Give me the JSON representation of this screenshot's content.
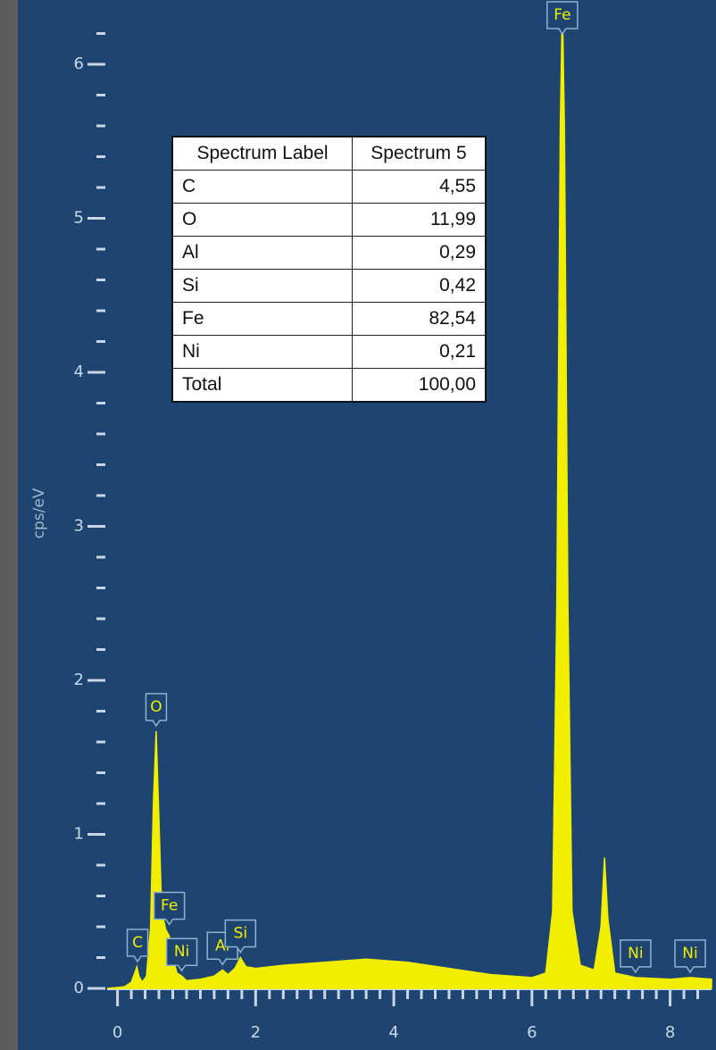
{
  "chart_data": {
    "type": "area",
    "y_label": "cps/eV",
    "color": "#f2ee00",
    "x": [
      -0.15,
      0.1,
      0.2,
      0.25,
      0.28,
      0.31,
      0.36,
      0.42,
      0.48,
      0.52,
      0.56,
      0.6,
      0.64,
      0.7,
      0.75,
      0.8,
      0.86,
      0.93,
      1.0,
      1.2,
      1.4,
      1.52,
      1.6,
      1.7,
      1.78,
      1.86,
      2.0,
      2.4,
      3.0,
      3.6,
      4.2,
      4.8,
      5.4,
      6.0,
      6.2,
      6.3,
      6.36,
      6.41,
      6.44,
      6.47,
      6.52,
      6.58,
      6.7,
      6.9,
      7.0,
      7.05,
      7.1,
      7.2,
      7.5,
      8.0,
      8.29,
      8.6
    ],
    "values": [
      0,
      0.01,
      0.04,
      0.1,
      0.14,
      0.08,
      0.04,
      0.08,
      0.4,
      1.2,
      1.67,
      1.1,
      0.5,
      0.38,
      0.34,
      0.2,
      0.1,
      0.08,
      0.05,
      0.06,
      0.08,
      0.12,
      0.09,
      0.13,
      0.2,
      0.14,
      0.13,
      0.15,
      0.17,
      0.19,
      0.17,
      0.13,
      0.09,
      0.07,
      0.1,
      0.5,
      2.5,
      5.6,
      6.4,
      5.6,
      2.5,
      0.5,
      0.15,
      0.12,
      0.4,
      0.85,
      0.45,
      0.1,
      0.07,
      0.06,
      0.07,
      0.06
    ],
    "xlim": [
      -0.15,
      8.6
    ],
    "ylim": [
      0,
      6.4
    ],
    "xticks": [
      0,
      2,
      4,
      6,
      8
    ],
    "yticks": [
      0,
      1,
      2,
      3,
      4,
      5,
      6
    ],
    "xminorticks": [
      0.2,
      0.4,
      0.6,
      0.8,
      1,
      1.2,
      1.4,
      1.6,
      1.8,
      2.2,
      2.4,
      2.6,
      2.8,
      3,
      3.2,
      3.4,
      3.6,
      3.8,
      4.2,
      4.4,
      4.6,
      4.8,
      5,
      5.2,
      5.4,
      5.6,
      5.8,
      6.2,
      6.4,
      6.6,
      6.8,
      7,
      7.2,
      7.4,
      7.6,
      7.8,
      8.2,
      8.4
    ],
    "yminorticks": [
      0.2,
      0.4,
      0.6,
      0.8,
      1.2,
      1.4,
      1.6,
      1.8,
      2.2,
      2.4,
      2.6,
      2.8,
      3.2,
      3.4,
      3.6,
      3.8,
      4.2,
      4.4,
      4.6,
      4.8,
      5.2,
      5.4,
      5.6,
      5.8,
      6.2
    ],
    "annotations": [
      {
        "text": "C",
        "x": 0.29
      },
      {
        "text": "O",
        "x": 0.56
      },
      {
        "text": "Fe",
        "x": 0.75
      },
      {
        "text": "Ni",
        "x": 0.93
      },
      {
        "text": "Al",
        "x": 1.52
      },
      {
        "text": "Si",
        "x": 1.78
      },
      {
        "text": "Fe",
        "x": 6.44
      },
      {
        "text": "Ni",
        "x": 7.5
      },
      {
        "text": "Ni",
        "x": 8.29
      }
    ]
  },
  "table": {
    "header": [
      "Spectrum Label",
      "Spectrum 5"
    ],
    "rows": [
      [
        "C",
        "4,55"
      ],
      [
        "O",
        "11,99"
      ],
      [
        "Al",
        "0,29"
      ],
      [
        "Si",
        "0,42"
      ],
      [
        "Fe",
        "82,54"
      ],
      [
        "Ni",
        "0,21"
      ],
      [
        "Total",
        "100,00"
      ]
    ]
  }
}
